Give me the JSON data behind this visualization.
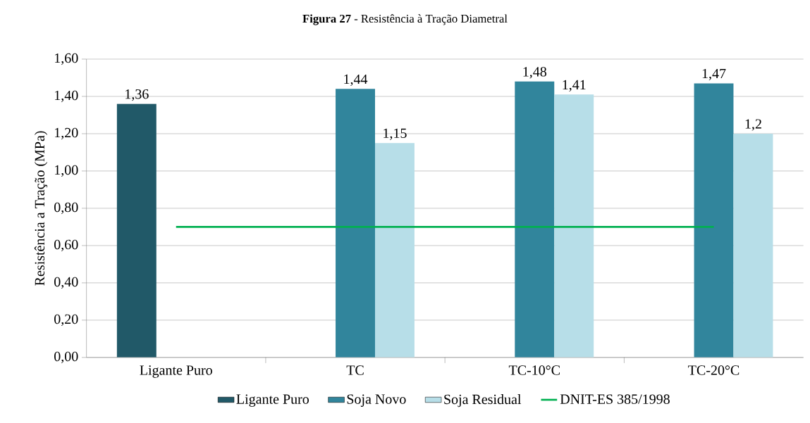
{
  "chart_data": {
    "type": "bar",
    "title": "**Figura 27** - Resistência à Tração Diametral",
    "ylabel": "Resistência a Tração (MPa)",
    "categories": [
      "Ligante Puro",
      "TC",
      "TC-10°C",
      "TC-20°C"
    ],
    "series": [
      {
        "name": "Ligante Puro",
        "color": "#215968",
        "values": [
          1.36,
          null,
          null,
          null
        ],
        "value_labels": [
          "1,36",
          null,
          null,
          null
        ]
      },
      {
        "name": "Soja Novo",
        "color": "#31859c",
        "values": [
          null,
          1.44,
          1.48,
          1.47
        ],
        "value_labels": [
          null,
          "1,44",
          "1,48",
          "1,47"
        ]
      },
      {
        "name": "Soja Residual",
        "color": "#b7dee8",
        "values": [
          null,
          1.15,
          1.41,
          1.2
        ],
        "value_labels": [
          null,
          "1,15",
          "1,41",
          "1,2"
        ]
      },
      {
        "name": "DNIT-ES 385/1998",
        "type": "line",
        "color": "#00b050",
        "values": [
          0.7,
          0.7,
          0.7,
          0.7
        ]
      }
    ],
    "ylim": [
      0,
      1.6
    ],
    "yticks": [
      {
        "value": 0,
        "label": "0,00"
      },
      {
        "value": 0.2,
        "label": "0,20"
      },
      {
        "value": 0.4,
        "label": "0,40"
      },
      {
        "value": 0.6,
        "label": "0,60"
      },
      {
        "value": 0.8,
        "label": "0,80"
      },
      {
        "value": 1.0,
        "label": "1,00"
      },
      {
        "value": 1.2,
        "label": "1,20"
      },
      {
        "value": 1.4,
        "label": "1,40"
      },
      {
        "value": 1.6,
        "label": "1,60"
      }
    ],
    "grid": "y",
    "legend": "bottom"
  }
}
